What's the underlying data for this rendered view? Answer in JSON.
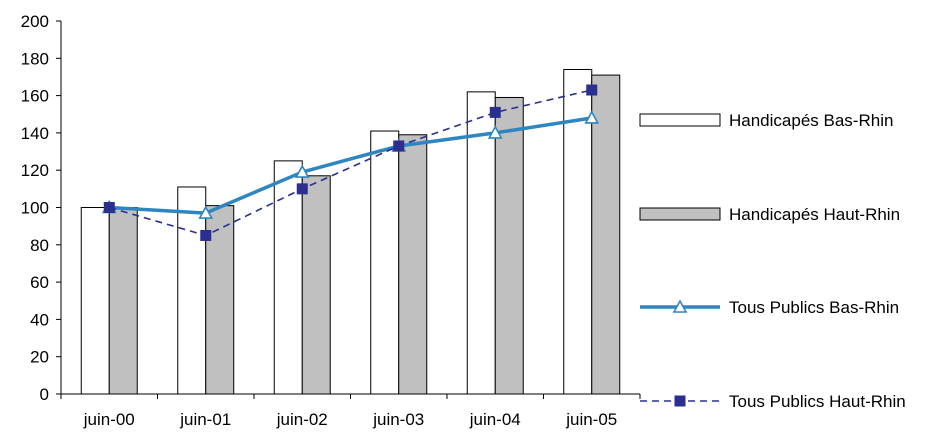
{
  "chart_data": {
    "type": "bar",
    "categories": [
      "juin-00",
      "juin-01",
      "juin-02",
      "juin-03",
      "juin-04",
      "juin-05"
    ],
    "ylim": [
      0,
      200
    ],
    "yticks": [
      0,
      20,
      40,
      60,
      80,
      100,
      120,
      140,
      160,
      180,
      200
    ],
    "grid": false,
    "legend_position": "right",
    "series": [
      {
        "name": "Handicapés Bas-Rhin",
        "kind": "bar",
        "color": "#ffffff",
        "stroke": "#000000",
        "values": [
          100,
          111,
          125,
          141,
          162,
          174
        ]
      },
      {
        "name": "Handicapés Haut-Rhin",
        "kind": "bar",
        "color": "#c0c0c0",
        "stroke": "#000000",
        "values": [
          100,
          101,
          117,
          139,
          159,
          171
        ]
      },
      {
        "name": "Tous Publics Bas-Rhin",
        "kind": "line",
        "color": "#2e86c1",
        "line_style": "solid",
        "marker": "triangle-open",
        "values": [
          100,
          97,
          119,
          133,
          140,
          148
        ]
      },
      {
        "name": "Tous Publics Haut-Rhin",
        "kind": "line",
        "color": "#2b2f8f",
        "line_style": "dashed",
        "marker": "square",
        "values": [
          100,
          85,
          110,
          133,
          151,
          163
        ]
      }
    ]
  }
}
